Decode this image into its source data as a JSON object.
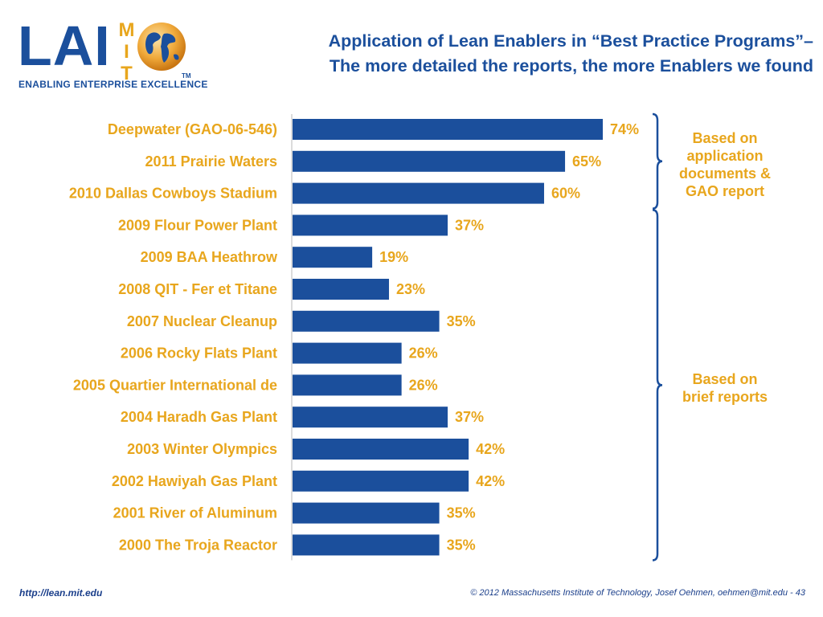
{
  "logo": {
    "mark": "LAI",
    "vertical": "MIT",
    "tagline": "ENABLING ENTERPRISE EXCELLENCE",
    "tm": "TM",
    "icon": "globe-icon"
  },
  "title": {
    "line1": "Application of Lean Enablers in “Best Practice Programs”–",
    "line2": "The more detailed the reports, the more Enablers we found"
  },
  "colors": {
    "bar": "#1b4f9c",
    "label": "#e8a61d",
    "title": "#1b4f9c",
    "bracket": "#1b4f9c"
  },
  "chart_data": {
    "type": "bar",
    "orientation": "horizontal",
    "categories": [
      "Deepwater (GAO-06-546)",
      "2011 Prairie Waters",
      "2010 Dallas Cowboys Stadium",
      "2009 Flour Power Plant",
      "2009 BAA Heathrow",
      "2008 QIT - Fer et Titane",
      "2007 Nuclear Cleanup",
      "2006 Rocky Flats Plant",
      "2005 Quartier International de",
      "2004 Haradh Gas Plant",
      "2003 Winter Olympics",
      "2002 Hawiyah Gas Plant",
      "2001 River of Aluminum",
      "2000 The Troja Reactor"
    ],
    "values": [
      74,
      65,
      60,
      37,
      19,
      23,
      35,
      26,
      26,
      37,
      42,
      42,
      35,
      35
    ],
    "value_labels": [
      "74%",
      "65%",
      "60%",
      "37%",
      "19%",
      "23%",
      "35%",
      "26%",
      "26%",
      "37%",
      "42%",
      "42%",
      "35%",
      "35%"
    ],
    "xlim": [
      0,
      100
    ],
    "grid": false,
    "groups": [
      {
        "label_lines": [
          "Based on",
          "application",
          "documents &",
          "GAO report"
        ],
        "first": 0,
        "last": 2
      },
      {
        "label_lines": [
          "Based on",
          "brief reports"
        ],
        "first": 3,
        "last": 13
      }
    ]
  },
  "footer": {
    "url": "http://lean.mit.edu",
    "copyright": "© 2012 Massachusetts Institute of Technology, Josef Oehmen, oehmen@mit.edu - 43"
  }
}
